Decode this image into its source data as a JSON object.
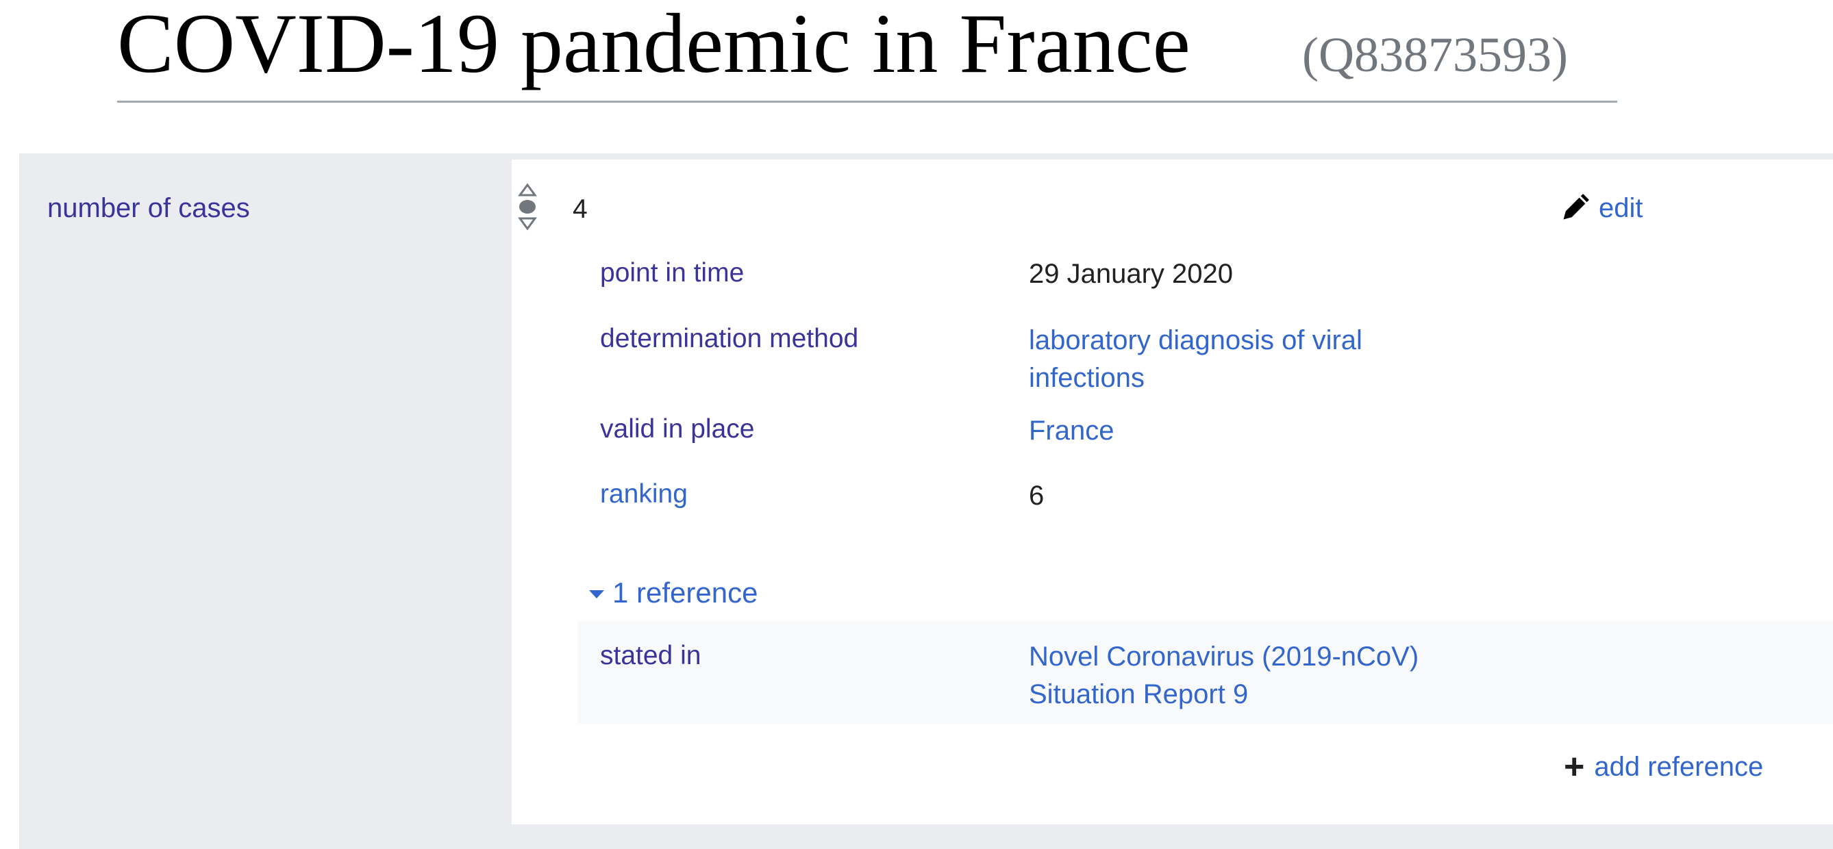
{
  "page": {
    "title": "COVID-19 pandemic in France",
    "entity_id": "(Q83873593)"
  },
  "statement": {
    "property_label": "number of cases",
    "value": "4",
    "edit_label": "edit",
    "qualifiers": [
      {
        "property": "point in time",
        "value": [
          "29 January 2020"
        ]
      },
      {
        "property": "determination method",
        "value": [
          "laboratory diagnosis of viral",
          "infections"
        ]
      },
      {
        "property": "valid in place",
        "value": [
          "France"
        ]
      },
      {
        "property": "ranking",
        "value": [
          "6"
        ]
      }
    ],
    "references": {
      "toggle_label": "1 reference",
      "items": [
        {
          "property": "stated in",
          "value": [
            "Novel Coronavirus (2019-nCoV)",
            "Situation Report 9"
          ]
        }
      ],
      "add_label": "add reference"
    }
  },
  "icons": {
    "rank": "rank-normal-icon",
    "edit": "pencil-icon",
    "add": "plus-icon",
    "toggle": "caret-down-icon"
  },
  "colors": {
    "link": "#3366cc",
    "property_label": "#3a3399",
    "property_bg": "#eaecf0",
    "reference_bg": "#f8f9fa",
    "title_underline": "#a2a9b1",
    "entity_id": "#72777d"
  }
}
